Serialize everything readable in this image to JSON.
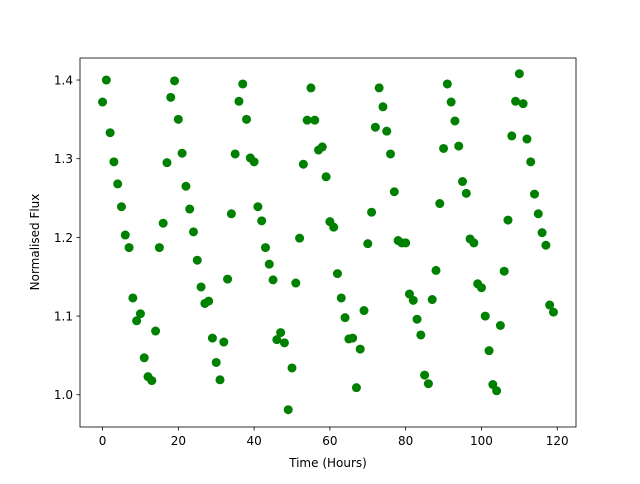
{
  "chart_data": {
    "type": "scatter",
    "xlabel": "Time (Hours)",
    "ylabel": "Normalised Flux",
    "color": "#008000",
    "x": [
      0,
      1,
      2,
      3,
      4,
      5,
      6,
      7,
      8,
      9,
      10,
      11,
      12,
      13,
      14,
      15,
      16,
      17,
      18,
      19,
      20,
      21,
      22,
      23,
      24,
      25,
      26,
      27,
      28,
      29,
      30,
      31,
      32,
      33,
      34,
      35,
      36,
      37,
      38,
      39,
      40,
      41,
      42,
      43,
      44,
      45,
      46,
      47,
      48,
      49,
      50,
      51,
      52,
      53,
      54,
      55,
      56,
      57,
      58,
      59,
      60,
      61,
      62,
      63,
      64,
      65,
      66,
      67,
      68,
      69,
      70,
      71,
      72,
      73,
      74,
      75,
      76,
      77,
      78,
      79,
      80,
      81,
      82,
      83,
      84,
      85,
      86,
      87,
      88,
      89,
      90,
      91,
      92,
      93,
      94,
      95,
      96,
      97,
      98,
      99,
      100,
      101,
      102,
      103,
      104,
      105,
      106,
      107,
      108,
      109,
      110,
      111,
      112,
      113,
      114,
      115,
      116,
      117,
      118,
      119
    ],
    "values": [
      1.372,
      1.4,
      1.333,
      1.296,
      1.268,
      1.239,
      1.203,
      1.187,
      1.123,
      1.094,
      1.103,
      1.047,
      1.023,
      1.018,
      1.081,
      1.187,
      1.218,
      1.295,
      1.378,
      1.399,
      1.35,
      1.307,
      1.265,
      1.236,
      1.207,
      1.171,
      1.137,
      1.116,
      1.119,
      1.072,
      1.041,
      1.019,
      1.067,
      1.147,
      1.23,
      1.306,
      1.373,
      1.395,
      1.35,
      1.301,
      1.296,
      1.239,
      1.221,
      1.187,
      1.166,
      1.146,
      1.07,
      1.079,
      1.066,
      0.981,
      1.034,
      1.142,
      1.199,
      1.293,
      1.349,
      1.39,
      1.349,
      1.311,
      1.315,
      1.277,
      1.22,
      1.213,
      1.154,
      1.123,
      1.098,
      1.071,
      1.072,
      1.009,
      1.058,
      1.107,
      1.192,
      1.232,
      1.34,
      1.39,
      1.366,
      1.335,
      1.306,
      1.258,
      1.196,
      1.193,
      1.193,
      1.128,
      1.12,
      1.096,
      1.076,
      1.025,
      1.014,
      1.121,
      1.158,
      1.243,
      1.313,
      1.395,
      1.372,
      1.348,
      1.316,
      1.271,
      1.256,
      1.198,
      1.193,
      1.141,
      1.136,
      1.1,
      1.056,
      1.013,
      1.005,
      1.088,
      1.157,
      1.222,
      1.329,
      1.373,
      1.408,
      1.37,
      1.325,
      1.296,
      1.255,
      1.23,
      1.206,
      1.19,
      1.114,
      1.105
    ],
    "xlim": [
      -5.95,
      124.95
    ],
    "ylim": [
      0.959,
      1.428
    ],
    "xticks": [
      0,
      20,
      40,
      60,
      80,
      100,
      120
    ],
    "yticks": [
      {
        "value": 1,
        "label": "1.0"
      },
      1.1,
      1.2,
      1.3,
      1.4
    ]
  }
}
